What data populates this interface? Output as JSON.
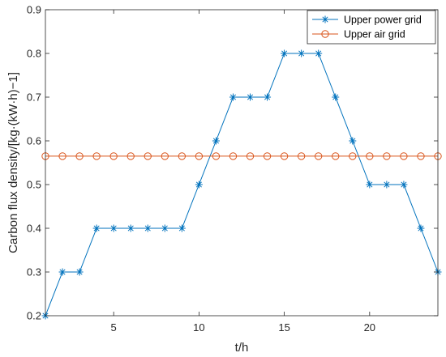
{
  "chart_data": {
    "type": "line",
    "xlabel": "t/h",
    "ylabel": "Carbon flux density/[kg·(kW·h)−1]",
    "xlim": [
      1,
      24
    ],
    "ylim": [
      0.2,
      0.9
    ],
    "xticks": [
      5,
      10,
      15,
      20
    ],
    "yticks": [
      0.2,
      0.3,
      0.4,
      0.5,
      0.6,
      0.7,
      0.8,
      0.9
    ],
    "grid": false,
    "legend_position": "top-right",
    "x": [
      1,
      2,
      3,
      4,
      5,
      6,
      7,
      8,
      9,
      10,
      11,
      12,
      13,
      14,
      15,
      16,
      17,
      18,
      19,
      20,
      21,
      22,
      23,
      24
    ],
    "series": [
      {
        "name": "Upper power grid",
        "color": "#0072BD",
        "marker": "asterisk",
        "values": [
          0.2,
          0.3,
          0.3,
          0.4,
          0.4,
          0.4,
          0.4,
          0.4,
          0.4,
          0.5,
          0.6,
          0.7,
          0.7,
          0.7,
          0.8,
          0.8,
          0.8,
          0.7,
          0.6,
          0.5,
          0.5,
          0.5,
          0.4,
          0.3
        ]
      },
      {
        "name": "Upper air grid",
        "color": "#D95319",
        "marker": "circle",
        "values": [
          0.565,
          0.565,
          0.565,
          0.565,
          0.565,
          0.565,
          0.565,
          0.565,
          0.565,
          0.565,
          0.565,
          0.565,
          0.565,
          0.565,
          0.565,
          0.565,
          0.565,
          0.565,
          0.565,
          0.565,
          0.565,
          0.565,
          0.565,
          0.565
        ]
      }
    ]
  }
}
